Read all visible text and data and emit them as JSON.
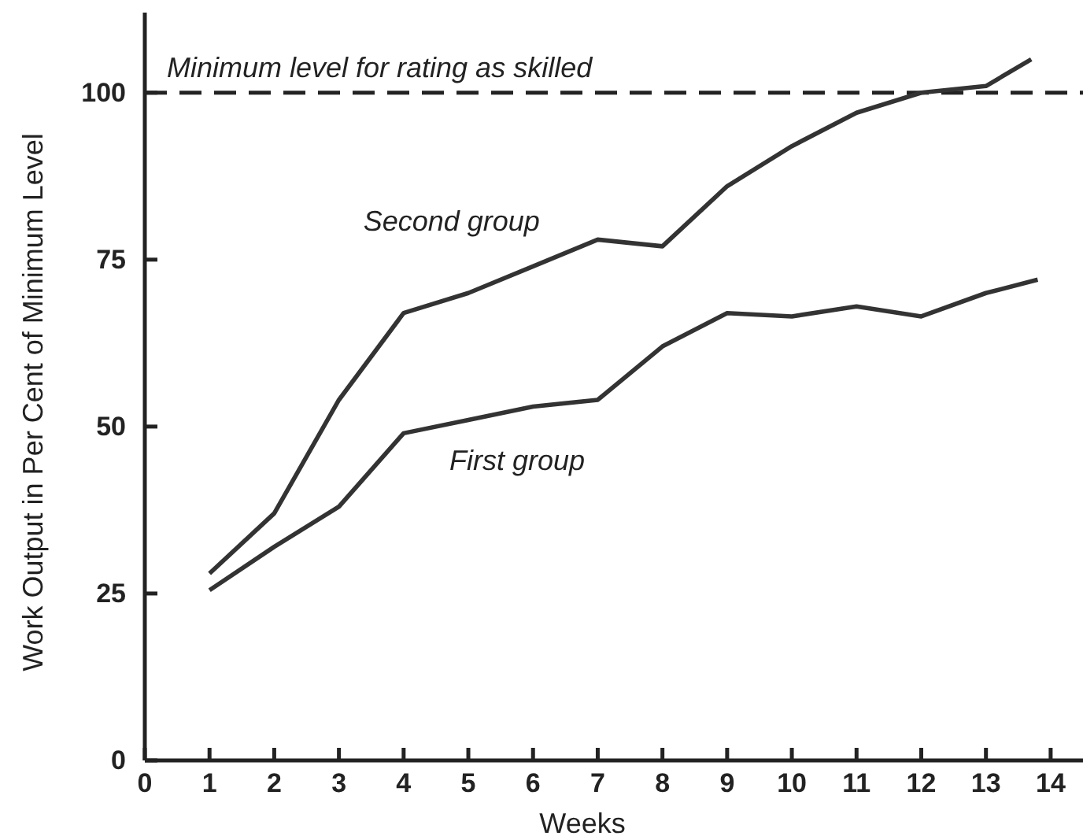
{
  "chart_data": {
    "type": "line",
    "xlabel": "Weeks",
    "ylabel": "Work Output in Per Cent of Minimum Level",
    "xlim": [
      0,
      14.5
    ],
    "xticks": [
      0,
      1,
      2,
      3,
      4,
      5,
      6,
      7,
      8,
      9,
      10,
      11,
      12,
      13,
      14
    ],
    "ylim": [
      0,
      112
    ],
    "yticks": [
      0,
      25,
      50,
      75,
      100
    ],
    "series": [
      {
        "name": "Second group",
        "color": "#333333",
        "x": [
          1,
          2,
          3,
          4,
          5,
          6,
          7,
          8,
          9,
          10,
          11,
          12,
          13,
          13.7
        ],
        "values": [
          28,
          37,
          54,
          67,
          70,
          74,
          78,
          77,
          86,
          92,
          97,
          100,
          101,
          105
        ]
      },
      {
        "name": "First group",
        "color": "#333333",
        "x": [
          1,
          2,
          3,
          4,
          5,
          6,
          7,
          8,
          9,
          10,
          11,
          12,
          13,
          13.8
        ],
        "values": [
          25.5,
          32,
          38,
          49,
          51,
          53,
          54,
          62,
          67,
          66.5,
          68,
          66.5,
          70,
          72
        ]
      }
    ],
    "ref_lines": [
      {
        "axis": "y",
        "value": 100,
        "label": "Minimum level for rating as skilled",
        "line_style": "dashed",
        "color": "#222222"
      }
    ],
    "grid": false,
    "legend": false,
    "marker": "none",
    "line_style": "solid"
  }
}
